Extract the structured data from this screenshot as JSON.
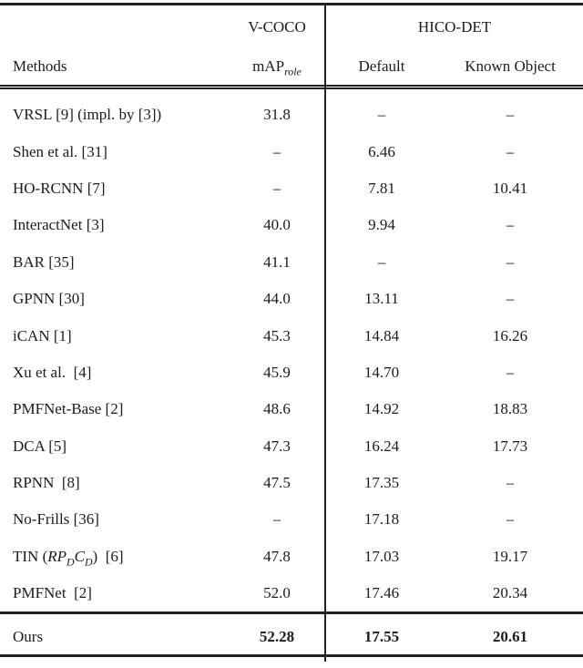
{
  "page": {
    "background": "#ffffff",
    "text_color": "#1b1b1b",
    "rule_color": "#222222"
  },
  "table": {
    "header": {
      "group_vcoco": "V-COCO",
      "group_hicodet": "HICO-DET",
      "methods": "Methods",
      "map_label": "mAP$_{role}$",
      "default": "Default",
      "known_object": "Known Object"
    },
    "rows": [
      {
        "method": "VRSL [9] (impl. by [3])",
        "vcoco_map_role": "31.8",
        "hico_default": "–",
        "hico_known_object": "–"
      },
      {
        "method": "Shen et al. [31]",
        "vcoco_map_role": "–",
        "hico_default": "6.46",
        "hico_known_object": "–"
      },
      {
        "method": "HO-RCNN [7]",
        "vcoco_map_role": "–",
        "hico_default": "7.81",
        "hico_known_object": "10.41"
      },
      {
        "method": "InteractNet [3]",
        "vcoco_map_role": "40.0",
        "hico_default": "9.94",
        "hico_known_object": "–"
      },
      {
        "method": "BAR [35]",
        "vcoco_map_role": "41.1",
        "hico_default": "–",
        "hico_known_object": "–"
      },
      {
        "method": "GPNN [30]",
        "vcoco_map_role": "44.0",
        "hico_default": "13.11",
        "hico_known_object": "–"
      },
      {
        "method": "iCAN [1]",
        "vcoco_map_role": "45.3",
        "hico_default": "14.84",
        "hico_known_object": "16.26"
      },
      {
        "method": "Xu et al.  [4]",
        "vcoco_map_role": "45.9",
        "hico_default": "14.70",
        "hico_known_object": "–"
      },
      {
        "method": "PMFNet-Base [2]",
        "vcoco_map_role": "48.6",
        "hico_default": "14.92",
        "hico_known_object": "18.83"
      },
      {
        "method": "DCA [5]",
        "vcoco_map_role": "47.3",
        "hico_default": "16.24",
        "hico_known_object": "17.73"
      },
      {
        "method": "RPNN  [8]",
        "vcoco_map_role": "47.5",
        "hico_default": "17.35",
        "hico_known_object": "–"
      },
      {
        "method": "No-Frills [36]",
        "vcoco_map_role": "–",
        "hico_default": "17.18",
        "hico_known_object": "–"
      },
      {
        "method": "TIN ($RP_DC_D$)  [6]",
        "vcoco_map_role": "47.8",
        "hico_default": "17.03",
        "hico_known_object": "19.17"
      },
      {
        "method": "PMFNet  [2]",
        "vcoco_map_role": "52.0",
        "hico_default": "17.46",
        "hico_known_object": "20.34"
      }
    ],
    "ours_row": {
      "method": "Ours",
      "vcoco_map_role": "52.28",
      "hico_default": "17.55",
      "hico_known_object": "20.61"
    }
  }
}
